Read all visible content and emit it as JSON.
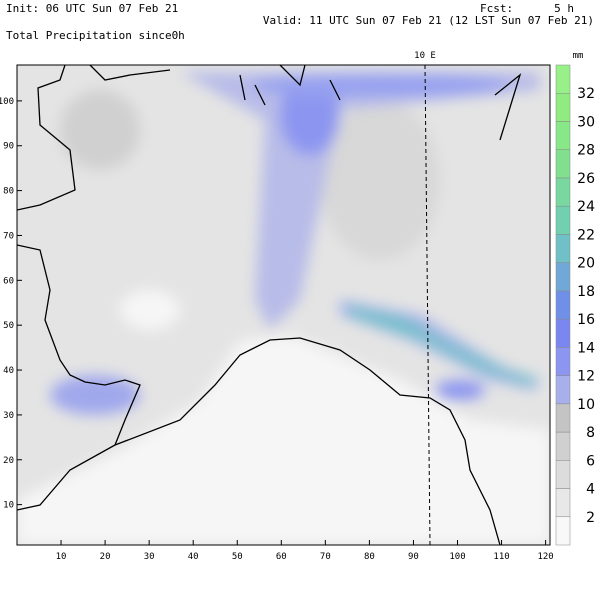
{
  "header": {
    "init": "Init: 06 UTC Sun 07 Feb 21",
    "fcst_label": "Fcst:",
    "fcst_value": "5 h",
    "valid": "Valid: 11 UTC Sun 07 Feb 21 (12 LST Sun 07 Feb 21)",
    "field": "Total Precipitation since0h"
  },
  "map": {
    "meridian_label": "10 E",
    "xlim": [
      0,
      121
    ],
    "ylim": [
      1,
      108
    ],
    "xticks": [
      10,
      20,
      30,
      40,
      50,
      60,
      70,
      80,
      90,
      100,
      110,
      120
    ],
    "yticks": [
      10,
      20,
      30,
      40,
      50,
      60,
      70,
      80,
      90,
      100
    ]
  },
  "colorbar": {
    "unit": "mm",
    "lim": [
      0,
      34
    ],
    "levels": [
      2,
      4,
      6,
      8,
      10,
      12,
      14,
      16,
      18,
      20,
      22,
      24,
      26,
      28,
      30,
      32
    ],
    "colors": [
      "#f8f8f8",
      "#e8e8e8",
      "#dcdcdc",
      "#d0d0d0",
      "#c4c4c4",
      "#a8b0ec",
      "#8c96f0",
      "#7a87f0",
      "#7090e8",
      "#70a8d8",
      "#70c0c8",
      "#70d0b0",
      "#78d8a0",
      "#80e090",
      "#88e888",
      "#90ec80",
      "#98f088"
    ]
  }
}
